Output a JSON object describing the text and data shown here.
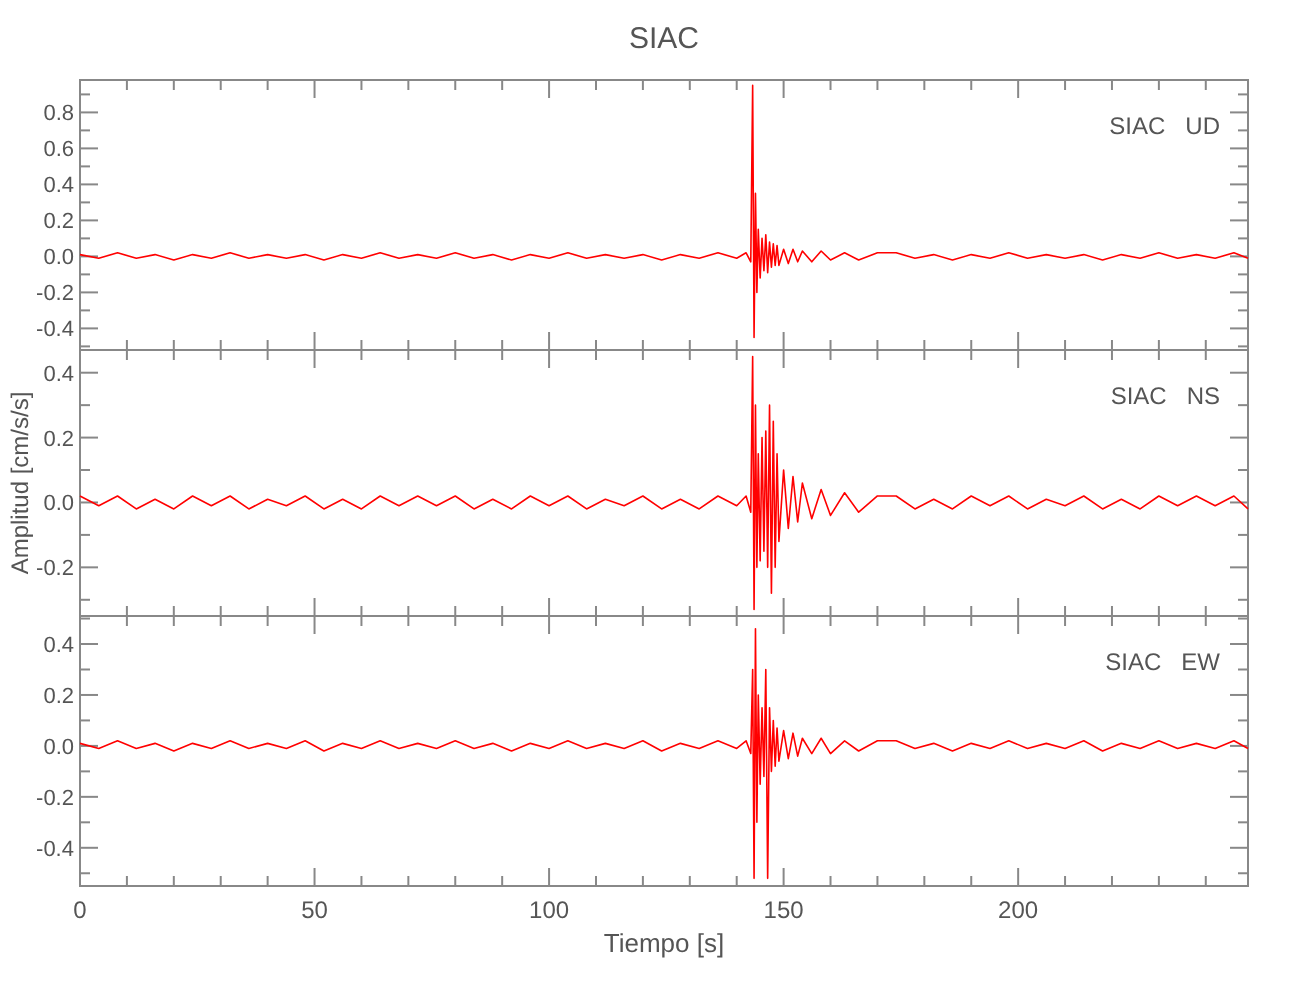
{
  "chart_data": [
    {
      "type": "line",
      "title": "SIAC",
      "tick_labels": "y",
      "annotations": [
        "SIAC   UD"
      ],
      "xlim": [
        0,
        249
      ],
      "ylim": [
        -0.52,
        0.98
      ],
      "xticks": [
        0,
        {
          "value": 10,
          "label": null
        },
        {
          "value": 20,
          "label": null
        },
        {
          "value": 30,
          "label": null
        },
        {
          "value": 40,
          "label": null
        },
        50,
        {
          "value": 60,
          "label": null
        },
        {
          "value": 70,
          "label": null
        },
        {
          "value": 80,
          "label": null
        },
        {
          "value": 90,
          "label": null
        },
        100,
        {
          "value": 110,
          "label": null
        },
        {
          "value": 120,
          "label": null
        },
        {
          "value": 130,
          "label": null
        },
        {
          "value": 140,
          "label": null
        },
        150,
        {
          "value": 160,
          "label": null
        },
        {
          "value": 170,
          "label": null
        },
        {
          "value": 180,
          "label": null
        },
        {
          "value": 190,
          "label": null
        },
        200,
        {
          "value": 210,
          "label": null
        },
        {
          "value": 220,
          "label": null
        },
        {
          "value": 230,
          "label": null
        },
        {
          "value": 240,
          "label": null
        }
      ],
      "yticks": [
        {
          "value": -0.5,
          "label": null
        },
        {
          "value": -0.4,
          "label": "-0.4"
        },
        {
          "value": -0.3,
          "label": null
        },
        {
          "value": -0.2,
          "label": "-0.2"
        },
        {
          "value": -0.1,
          "label": null
        },
        {
          "value": 0,
          "label": "0.0"
        },
        {
          "value": 0.1,
          "label": null
        },
        {
          "value": 0.2,
          "label": "0.2"
        },
        {
          "value": 0.3,
          "label": null
        },
        {
          "value": 0.4,
          "label": "0.4"
        },
        {
          "value": 0.5,
          "label": null
        },
        {
          "value": 0.6,
          "label": "0.6"
        },
        {
          "value": 0.7,
          "label": null
        },
        {
          "value": 0.8,
          "label": "0.8"
        },
        {
          "value": 0.9,
          "label": null
        }
      ],
      "x": [
        0,
        4,
        8,
        12,
        16,
        20,
        24,
        28,
        32,
        36,
        40,
        44,
        48,
        52,
        56,
        60,
        64,
        68,
        72,
        76,
        80,
        84,
        88,
        92,
        96,
        100,
        104,
        108,
        112,
        116,
        120,
        124,
        128,
        132,
        136,
        140,
        142,
        143,
        143.4,
        143.7,
        144,
        144.3,
        144.6,
        145,
        145.4,
        145.8,
        146.2,
        146.6,
        147,
        147.4,
        147.8,
        148.2,
        148.6,
        149,
        150,
        151,
        152,
        153,
        154,
        156,
        158,
        160,
        163,
        166,
        170,
        174,
        178,
        182,
        186,
        190,
        194,
        198,
        202,
        206,
        210,
        214,
        218,
        222,
        226,
        230,
        234,
        238,
        242,
        246,
        249
      ],
      "series": [
        {
          "color": "#ff0000",
          "values": [
            0.01,
            -0.01,
            0.02,
            -0.01,
            0.01,
            -0.02,
            0.01,
            -0.01,
            0.02,
            -0.01,
            0.01,
            -0.01,
            0.01,
            -0.02,
            0.01,
            -0.01,
            0.02,
            -0.01,
            0.01,
            -0.01,
            0.02,
            -0.01,
            0.01,
            -0.02,
            0.01,
            -0.01,
            0.02,
            -0.01,
            0.01,
            -0.01,
            0.01,
            -0.02,
            0.01,
            -0.01,
            0.02,
            -0.01,
            0.02,
            -0.03,
            0.95,
            -0.45,
            0.35,
            -0.2,
            0.15,
            -0.12,
            0.1,
            -0.08,
            0.12,
            -0.09,
            0.08,
            -0.06,
            0.07,
            -0.05,
            0.06,
            -0.05,
            0.04,
            -0.04,
            0.04,
            -0.03,
            0.03,
            -0.03,
            0.03,
            -0.02,
            0.02,
            -0.02,
            0.02,
            0.02,
            -0.01,
            0.01,
            -0.02,
            0.01,
            -0.01,
            0.02,
            -0.01,
            0.01,
            -0.01,
            0.01,
            -0.02,
            0.01,
            -0.01,
            0.02,
            -0.01,
            0.01,
            -0.01,
            0.02,
            -0.01
          ]
        }
      ]
    },
    {
      "type": "line",
      "ylabel": "Amplitud [cm/s/s]",
      "tick_labels": "y",
      "annotations": [
        "SIAC   NS"
      ],
      "xlim": [
        0,
        249
      ],
      "ylim": [
        -0.35,
        0.47
      ],
      "xticks": [
        0,
        {
          "value": 10,
          "label": null
        },
        {
          "value": 20,
          "label": null
        },
        {
          "value": 30,
          "label": null
        },
        {
          "value": 40,
          "label": null
        },
        50,
        {
          "value": 60,
          "label": null
        },
        {
          "value": 70,
          "label": null
        },
        {
          "value": 80,
          "label": null
        },
        {
          "value": 90,
          "label": null
        },
        100,
        {
          "value": 110,
          "label": null
        },
        {
          "value": 120,
          "label": null
        },
        {
          "value": 130,
          "label": null
        },
        {
          "value": 140,
          "label": null
        },
        150,
        {
          "value": 160,
          "label": null
        },
        {
          "value": 170,
          "label": null
        },
        {
          "value": 180,
          "label": null
        },
        {
          "value": 190,
          "label": null
        },
        200,
        {
          "value": 210,
          "label": null
        },
        {
          "value": 220,
          "label": null
        },
        {
          "value": 230,
          "label": null
        },
        {
          "value": 240,
          "label": null
        }
      ],
      "yticks": [
        {
          "value": -0.3,
          "label": null
        },
        {
          "value": -0.2,
          "label": "-0.2"
        },
        {
          "value": -0.1,
          "label": null
        },
        {
          "value": 0,
          "label": "0.0"
        },
        {
          "value": 0.1,
          "label": null
        },
        {
          "value": 0.2,
          "label": "0.2"
        },
        {
          "value": 0.3,
          "label": null
        },
        {
          "value": 0.4,
          "label": "0.4"
        }
      ],
      "x": [
        0,
        4,
        8,
        12,
        16,
        20,
        24,
        28,
        32,
        36,
        40,
        44,
        48,
        52,
        56,
        60,
        64,
        68,
        72,
        76,
        80,
        84,
        88,
        92,
        96,
        100,
        104,
        108,
        112,
        116,
        120,
        124,
        128,
        132,
        136,
        140,
        142,
        143,
        143.4,
        143.7,
        144,
        144.3,
        144.6,
        145,
        145.4,
        145.8,
        146.2,
        146.6,
        147,
        147.4,
        147.8,
        148.2,
        148.6,
        149,
        150,
        151,
        152,
        153,
        154,
        156,
        158,
        160,
        163,
        166,
        170,
        174,
        178,
        182,
        186,
        190,
        194,
        198,
        202,
        206,
        210,
        214,
        218,
        222,
        226,
        230,
        234,
        238,
        242,
        246,
        249
      ],
      "series": [
        {
          "color": "#ff0000",
          "values": [
            0.02,
            -0.01,
            0.02,
            -0.02,
            0.01,
            -0.02,
            0.02,
            -0.01,
            0.02,
            -0.02,
            0.01,
            -0.01,
            0.02,
            -0.02,
            0.01,
            -0.02,
            0.02,
            -0.01,
            0.02,
            -0.01,
            0.02,
            -0.02,
            0.01,
            -0.02,
            0.02,
            -0.01,
            0.02,
            -0.02,
            0.01,
            -0.01,
            0.02,
            -0.02,
            0.01,
            -0.02,
            0.02,
            -0.01,
            0.02,
            -0.03,
            0.45,
            -0.33,
            0.3,
            -0.2,
            0.15,
            -0.18,
            0.2,
            -0.15,
            0.22,
            -0.2,
            0.3,
            -0.28,
            0.25,
            -0.2,
            0.15,
            -0.12,
            0.1,
            -0.08,
            0.08,
            -0.06,
            0.06,
            -0.05,
            0.04,
            -0.04,
            0.03,
            -0.03,
            0.02,
            0.02,
            -0.02,
            0.01,
            -0.02,
            0.02,
            -0.01,
            0.02,
            -0.02,
            0.01,
            -0.01,
            0.02,
            -0.02,
            0.01,
            -0.02,
            0.02,
            -0.01,
            0.02,
            -0.01,
            0.02,
            -0.02
          ]
        }
      ]
    },
    {
      "type": "line",
      "xlabel": "Tiempo [s]",
      "annotations": [
        "SIAC   EW"
      ],
      "xlim": [
        0,
        249
      ],
      "ylim": [
        -0.55,
        0.51
      ],
      "xticks": [
        0,
        {
          "value": 10,
          "label": null
        },
        {
          "value": 20,
          "label": null
        },
        {
          "value": 30,
          "label": null
        },
        {
          "value": 40,
          "label": null
        },
        50,
        {
          "value": 60,
          "label": null
        },
        {
          "value": 70,
          "label": null
        },
        {
          "value": 80,
          "label": null
        },
        {
          "value": 90,
          "label": null
        },
        100,
        {
          "value": 110,
          "label": null
        },
        {
          "value": 120,
          "label": null
        },
        {
          "value": 130,
          "label": null
        },
        {
          "value": 140,
          "label": null
        },
        150,
        {
          "value": 160,
          "label": null
        },
        {
          "value": 170,
          "label": null
        },
        {
          "value": 180,
          "label": null
        },
        {
          "value": 190,
          "label": null
        },
        200,
        {
          "value": 210,
          "label": null
        },
        {
          "value": 220,
          "label": null
        },
        {
          "value": 230,
          "label": null
        },
        {
          "value": 240,
          "label": null
        }
      ],
      "yticks": [
        {
          "value": -0.5,
          "label": null
        },
        {
          "value": -0.4,
          "label": "-0.4"
        },
        {
          "value": -0.3,
          "label": null
        },
        {
          "value": -0.2,
          "label": "-0.2"
        },
        {
          "value": -0.1,
          "label": null
        },
        {
          "value": 0,
          "label": "0.0"
        },
        {
          "value": 0.1,
          "label": null
        },
        {
          "value": 0.2,
          "label": "0.2"
        },
        {
          "value": 0.3,
          "label": null
        },
        {
          "value": 0.4,
          "label": "0.4"
        },
        {
          "value": 0.5,
          "label": null
        }
      ],
      "x": [
        0,
        4,
        8,
        12,
        16,
        20,
        24,
        28,
        32,
        36,
        40,
        44,
        48,
        52,
        56,
        60,
        64,
        68,
        72,
        76,
        80,
        84,
        88,
        92,
        96,
        100,
        104,
        108,
        112,
        116,
        120,
        124,
        128,
        132,
        136,
        140,
        142,
        143,
        143.4,
        143.7,
        144,
        144.3,
        144.6,
        145,
        145.4,
        145.8,
        146.2,
        146.6,
        147,
        147.4,
        147.8,
        148.2,
        148.6,
        149,
        150,
        151,
        152,
        153,
        154,
        156,
        158,
        160,
        163,
        166,
        170,
        174,
        178,
        182,
        186,
        190,
        194,
        198,
        202,
        206,
        210,
        214,
        218,
        222,
        226,
        230,
        234,
        238,
        242,
        246,
        249
      ],
      "series": [
        {
          "color": "#ff0000",
          "values": [
            0.01,
            -0.01,
            0.02,
            -0.01,
            0.01,
            -0.02,
            0.01,
            -0.01,
            0.02,
            -0.01,
            0.01,
            -0.01,
            0.02,
            -0.02,
            0.01,
            -0.01,
            0.02,
            -0.01,
            0.01,
            -0.01,
            0.02,
            -0.01,
            0.01,
            -0.02,
            0.01,
            -0.01,
            0.02,
            -0.01,
            0.01,
            -0.01,
            0.02,
            -0.02,
            0.01,
            -0.01,
            0.02,
            -0.01,
            0.02,
            -0.03,
            0.3,
            -0.52,
            0.46,
            -0.3,
            0.2,
            -0.15,
            0.15,
            -0.12,
            0.3,
            -0.52,
            0.15,
            -0.1,
            0.1,
            -0.08,
            0.07,
            -0.06,
            0.06,
            -0.05,
            0.05,
            -0.04,
            0.03,
            -0.03,
            0.03,
            -0.03,
            0.02,
            -0.02,
            0.02,
            0.02,
            -0.01,
            0.01,
            -0.02,
            0.01,
            -0.01,
            0.02,
            -0.01,
            0.01,
            -0.01,
            0.02,
            -0.02,
            0.01,
            -0.01,
            0.02,
            -0.01,
            0.01,
            -0.01,
            0.02,
            -0.01
          ]
        }
      ]
    }
  ]
}
